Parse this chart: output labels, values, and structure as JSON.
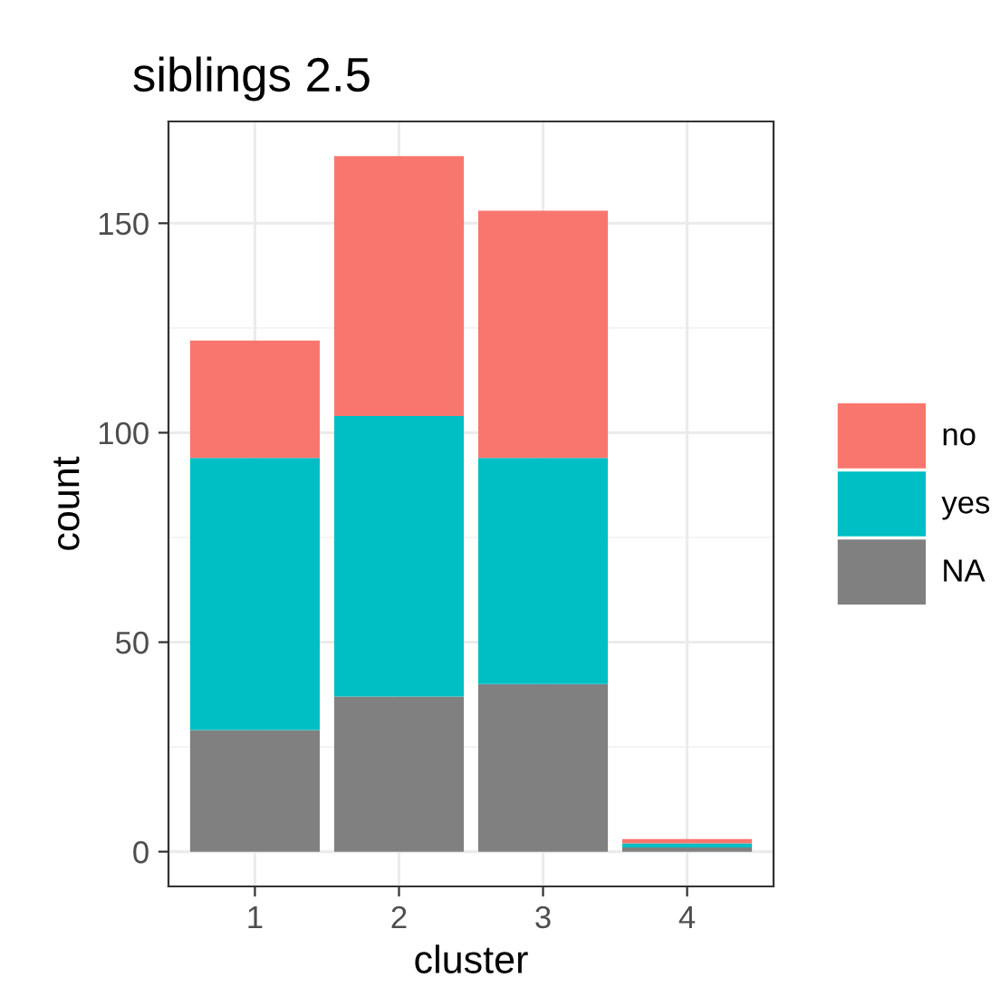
{
  "chart_data": {
    "type": "bar",
    "title": "siblings 2.5",
    "xlabel": "cluster",
    "ylabel": "count",
    "categories": [
      "1",
      "2",
      "3",
      "4"
    ],
    "stacked": true,
    "series": [
      {
        "name": "NA",
        "color": "#808080",
        "values": [
          29,
          37,
          40,
          1
        ]
      },
      {
        "name": "yes",
        "color": "#00bfc4",
        "values": [
          65,
          67,
          54,
          1
        ]
      },
      {
        "name": "no",
        "color": "#f8766d",
        "values": [
          28,
          62,
          59,
          1
        ]
      }
    ],
    "ylim": [
      -8.3,
      174.3
    ],
    "yticks": [
      0,
      50,
      100,
      150
    ],
    "grid": true,
    "legend": "right"
  }
}
